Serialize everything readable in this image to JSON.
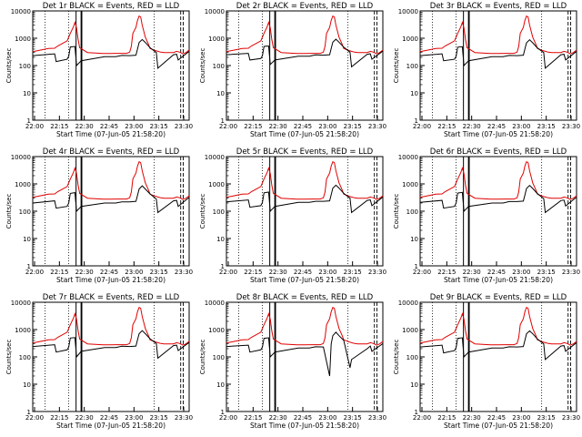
{
  "colors": {
    "events": "#000000",
    "lld": "#e00000",
    "background": "#ffffff"
  },
  "chart_data": {
    "type": "line",
    "yscale": "log",
    "ylim": [
      1,
      10000
    ],
    "ylabel": "Counts/sec",
    "xlabel": "Start Time (07-Jun-05 21:58:20)",
    "xtick_labels": [
      "22:00",
      "22:15",
      "22:30",
      "22:45",
      "23:00",
      "23:15",
      "23:30"
    ],
    "ytick_labels": [
      "1",
      "10",
      "100",
      "1000",
      "10000"
    ],
    "xlim_min": [
      0,
      100
    ],
    "series_names": [
      "Events",
      "LLD"
    ],
    "events_x": [
      0,
      14,
      15,
      22,
      23,
      24,
      27,
      28,
      31,
      46,
      53,
      57,
      62,
      66,
      67,
      68,
      70,
      72,
      75,
      79,
      80,
      90,
      92,
      93,
      99,
      100
    ],
    "lld_x": [
      0,
      5,
      10,
      14,
      16,
      22,
      24,
      26,
      27,
      28,
      29,
      30,
      35,
      45,
      50,
      55,
      60,
      62,
      63,
      64,
      66,
      67,
      68,
      69,
      70,
      72,
      74,
      75,
      78,
      80,
      82,
      84,
      88,
      90,
      92,
      94,
      96,
      98,
      100
    ],
    "lld_y": [
      320,
      370,
      420,
      430,
      520,
      800,
      1500,
      2600,
      3800,
      2400,
      900,
      450,
      300,
      275,
      275,
      280,
      280,
      310,
      500,
      1500,
      2500,
      4500,
      6500,
      6000,
      3000,
      1100,
      600,
      420,
      360,
      330,
      310,
      300,
      300,
      300,
      330,
      310,
      270,
      300,
      370
    ],
    "vlines": {
      "solid": [
        27.7,
        30.9,
        31.4
      ],
      "dotted": [
        7.8,
        22.9,
        77.7
      ],
      "dashed": [
        94.6,
        96.2
      ]
    },
    "panels": [
      {
        "title": "Det 1r  BLACK = Events, RED = LLD",
        "events_y": [
          230,
          270,
          140,
          170,
          220,
          480,
          500,
          100,
          150,
          210,
          210,
          235,
          230,
          240,
          400,
          700,
          900,
          700,
          450,
          300,
          80,
          250,
          260,
          160,
          300,
          330
        ]
      },
      {
        "title": "Det 2r  BLACK = Events, RED = LLD",
        "events_y": [
          250,
          280,
          160,
          180,
          230,
          500,
          520,
          110,
          160,
          220,
          220,
          245,
          240,
          250,
          420,
          720,
          920,
          720,
          470,
          310,
          90,
          260,
          270,
          170,
          310,
          340
        ]
      },
      {
        "title": "Det 3r  BLACK = Events, RED = LLD",
        "events_y": [
          230,
          270,
          150,
          170,
          220,
          470,
          490,
          100,
          150,
          210,
          210,
          235,
          230,
          240,
          400,
          680,
          880,
          680,
          440,
          300,
          80,
          250,
          260,
          160,
          300,
          330
        ]
      },
      {
        "title": "Det 4r  BLACK = Events, RED = LLD",
        "events_y": [
          200,
          240,
          130,
          150,
          200,
          450,
          480,
          100,
          150,
          200,
          200,
          220,
          220,
          230,
          380,
          650,
          850,
          650,
          430,
          280,
          90,
          240,
          250,
          150,
          290,
          320
        ]
      },
      {
        "title": "Det 5r  BLACK = Events, RED = LLD",
        "events_y": [
          220,
          260,
          140,
          160,
          210,
          470,
          500,
          100,
          150,
          210,
          210,
          230,
          230,
          240,
          400,
          700,
          900,
          700,
          450,
          300,
          90,
          250,
          260,
          160,
          300,
          330
        ]
      },
      {
        "title": "Det 6r  BLACK = Events, RED = LLD",
        "events_y": [
          210,
          250,
          130,
          150,
          200,
          460,
          490,
          100,
          150,
          200,
          200,
          225,
          225,
          235,
          390,
          680,
          880,
          680,
          440,
          290,
          90,
          245,
          255,
          155,
          295,
          325
        ]
      },
      {
        "title": "Det 7r  BLACK = Events, RED = LLD",
        "events_y": [
          240,
          280,
          150,
          180,
          230,
          490,
          510,
          100,
          160,
          220,
          220,
          245,
          240,
          250,
          420,
          710,
          910,
          710,
          460,
          310,
          90,
          260,
          270,
          170,
          310,
          340
        ]
      },
      {
        "title": "Det 8r  BLACK = Events, RED = LLD",
        "events_y": [
          240,
          270,
          150,
          180,
          230,
          480,
          500,
          100,
          150,
          210,
          210,
          235,
          230,
          20,
          300,
          600,
          800,
          600,
          400,
          40,
          80,
          200,
          250,
          160,
          280,
          310
        ]
      },
      {
        "title": "Det 9r  BLACK = Events, RED = LLD",
        "events_y": [
          230,
          270,
          140,
          170,
          220,
          480,
          500,
          100,
          150,
          210,
          210,
          235,
          230,
          240,
          400,
          700,
          900,
          700,
          450,
          300,
          80,
          250,
          260,
          160,
          300,
          330
        ]
      }
    ]
  }
}
